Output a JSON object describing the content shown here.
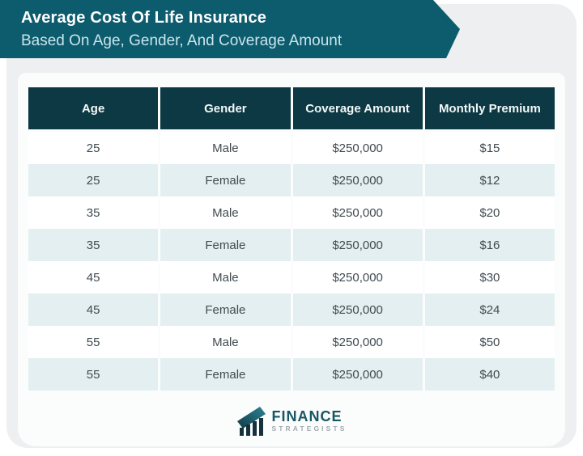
{
  "banner": {
    "title": "Average Cost Of Life Insurance",
    "subtitle": "Based On Age, Gender, And Coverage Amount"
  },
  "chart_data": {
    "type": "table",
    "title": "Average Cost Of Life Insurance Based On Age, Gender, And Coverage Amount",
    "columns": [
      "Age",
      "Gender",
      "Coverage Amount",
      "Monthly Premium"
    ],
    "rows": [
      [
        "25",
        "Male",
        "$250,000",
        "$15"
      ],
      [
        "25",
        "Female",
        "$250,000",
        "$12"
      ],
      [
        "35",
        "Male",
        "$250,000",
        "$20"
      ],
      [
        "35",
        "Female",
        "$250,000",
        "$16"
      ],
      [
        "45",
        "Male",
        "$250,000",
        "$30"
      ],
      [
        "45",
        "Female",
        "$250,000",
        "$24"
      ],
      [
        "55",
        "Male",
        "$250,000",
        "$50"
      ],
      [
        "55",
        "Female",
        "$250,000",
        "$40"
      ]
    ],
    "layout_hints": {
      "zebra_striping": true,
      "header_background": "#0c3943",
      "stripe_color": "#e4eff1"
    }
  },
  "logo": {
    "name": "FINANCE",
    "sub": "STRATEGISTS"
  },
  "colors": {
    "banner_teal": "#0d5c6e",
    "header_dark_teal": "#0c3943",
    "row_stripe_blue": "#e4eff1",
    "card_gray": "#edeff0",
    "panel_white": "#fbfcfc",
    "subtitle_text": "#c9e5eb",
    "body_text": "#414b51",
    "logo_teal": "#175764",
    "logo_gray": "#a2abae"
  }
}
